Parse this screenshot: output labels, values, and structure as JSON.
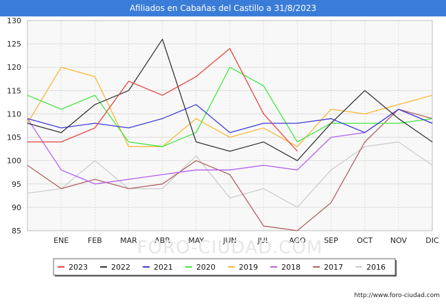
{
  "header": {
    "title": "Afiliados en Cabañas del Castillo a 31/8/2023"
  },
  "footer": {
    "url": "http://www.foro-ciudad.com"
  },
  "watermark": {
    "text": "FORO-CIUDAD.COM"
  },
  "colors": {
    "title_bar": "#3a7dd8",
    "plot_bg": "#f8f8f8",
    "grid": "#dcdcdc"
  },
  "chart_data": {
    "type": "line",
    "title": "Afiliados en Cabañas del Castillo a 31/8/2023",
    "xlabel": "",
    "ylabel": "",
    "categories": [
      "",
      "ENE",
      "FEB",
      "MAR",
      "ABR",
      "MAY",
      "JUN",
      "JUL",
      "AGO",
      "SEP",
      "OCT",
      "NOV",
      "DIC"
    ],
    "ylim": [
      85,
      130
    ],
    "yticks": [
      85,
      90,
      95,
      100,
      105,
      110,
      115,
      120,
      125,
      130
    ],
    "grid": true,
    "legend_position": "bottom",
    "series": [
      {
        "name": "2023",
        "color": "#e8413c",
        "values": [
          104,
          104,
          107,
          117,
          114,
          118,
          124,
          110,
          102,
          null,
          null,
          null,
          null
        ]
      },
      {
        "name": "2022",
        "color": "#333333",
        "values": [
          108,
          106,
          112,
          115,
          126,
          104,
          102,
          104,
          100,
          108,
          115,
          109,
          104
        ]
      },
      {
        "name": "2021",
        "color": "#3b3bd6",
        "values": [
          109,
          107,
          108,
          107,
          109,
          112,
          106,
          108,
          108,
          109,
          106,
          111,
          108
        ]
      },
      {
        "name": "2020",
        "color": "#3ee83e",
        "values": [
          114,
          111,
          114,
          104,
          103,
          106,
          120,
          116,
          104,
          108,
          108,
          108,
          109
        ]
      },
      {
        "name": "2019",
        "color": "#f7b733",
        "values": [
          108,
          120,
          118,
          103,
          103,
          109,
          105,
          107,
          103,
          111,
          110,
          112,
          114
        ]
      },
      {
        "name": "2018",
        "color": "#b45cf0",
        "values": [
          109,
          98,
          95,
          96,
          97,
          98,
          98,
          99,
          98,
          105,
          106,
          111,
          108
        ]
      },
      {
        "name": "2017",
        "color": "#b06060",
        "values": [
          99,
          94,
          96,
          94,
          95,
          100,
          97,
          86,
          85,
          91,
          104,
          111,
          109
        ]
      },
      {
        "name": "2016",
        "color": "#cccccc",
        "values": [
          93,
          94,
          100,
          94,
          94,
          101,
          92,
          94,
          90,
          98,
          103,
          104,
          99
        ]
      }
    ]
  }
}
